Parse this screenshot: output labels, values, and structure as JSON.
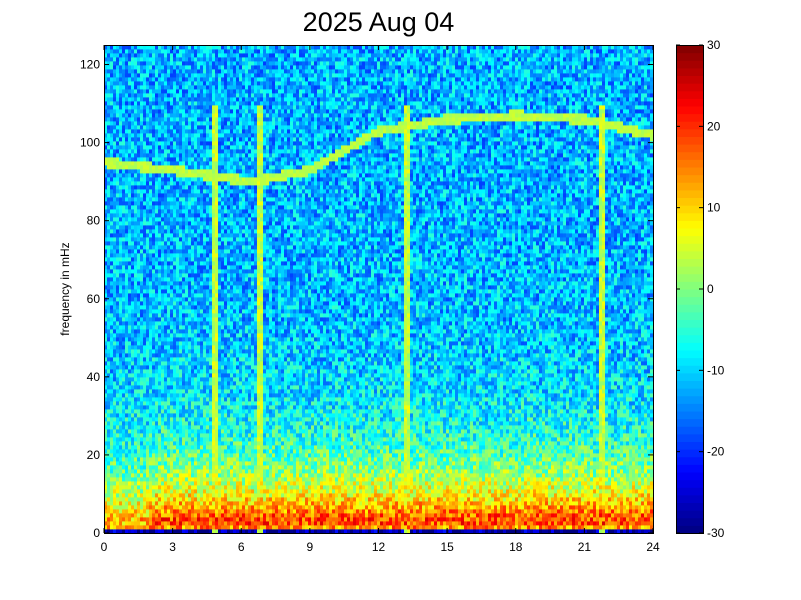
{
  "chart_data": {
    "type": "heatmap",
    "title": "2025 Aug 04",
    "xlabel": "",
    "ylabel": "frequency in mHz",
    "xlim": [
      0,
      24
    ],
    "ylim": [
      0,
      125
    ],
    "xticks": [
      0,
      3,
      6,
      9,
      12,
      15,
      18,
      21,
      24
    ],
    "yticks": [
      0,
      20,
      40,
      60,
      80,
      100,
      120
    ],
    "colorbar": {
      "colormap": "jet",
      "range": [
        -30,
        30
      ],
      "ticks": [
        -30,
        -20,
        -10,
        0,
        10,
        20,
        30
      ]
    },
    "features": {
      "background_value_high_freq": -12,
      "low_freq_band": {
        "freq_range": [
          2,
          15
        ],
        "value": 18
      },
      "tone_track": [
        [
          0,
          95
        ],
        [
          3,
          93
        ],
        [
          6.5,
          90
        ],
        [
          9,
          93
        ],
        [
          12,
          103
        ],
        [
          15,
          106
        ],
        [
          18,
          107
        ],
        [
          21,
          106
        ],
        [
          24,
          102
        ]
      ],
      "vertical_events_hours": [
        4.8,
        6.8,
        13.2,
        21.8
      ]
    }
  }
}
